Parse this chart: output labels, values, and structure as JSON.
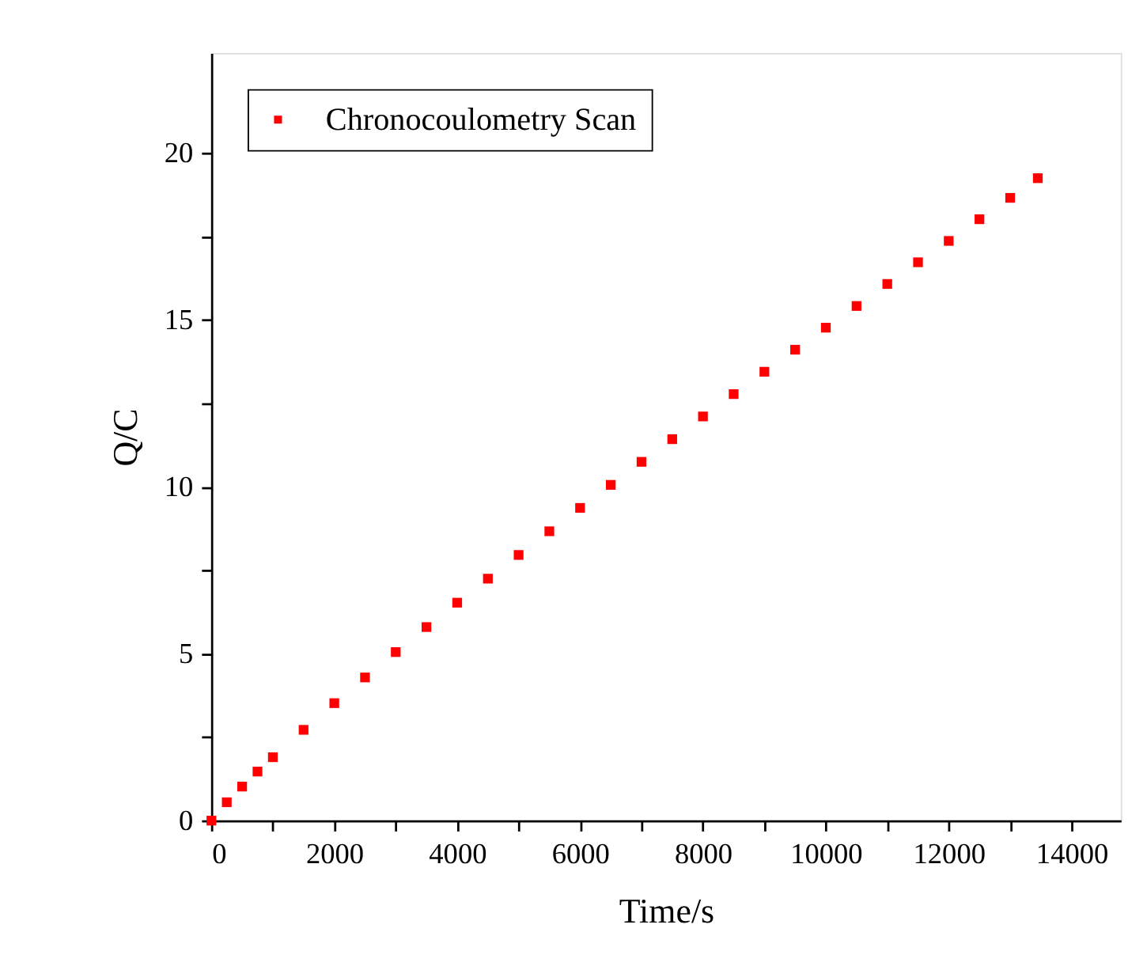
{
  "chart_data": {
    "type": "scatter",
    "xlabel": "Time/s",
    "ylabel": "Q/C",
    "marker": "square",
    "legend": "top left",
    "grid": false,
    "xlim": [
      0,
      14800
    ],
    "ylim": [
      0,
      23
    ],
    "xticks": [
      0,
      {
        "value": 1000,
        "label": null
      },
      2000,
      {
        "value": 3000,
        "label": null
      },
      4000,
      {
        "value": 5000,
        "label": null
      },
      6000,
      {
        "value": 7000,
        "label": null
      },
      8000,
      {
        "value": 9000,
        "label": null
      },
      10000,
      {
        "value": 11000,
        "label": null
      },
      12000,
      {
        "value": 13000,
        "label": null
      },
      14000
    ],
    "yticks": [
      0,
      {
        "value": 2.5,
        "label": null
      },
      5,
      {
        "value": 7.5,
        "label": null
      },
      10,
      {
        "value": 12.5,
        "label": null
      },
      15,
      {
        "value": 17.5,
        "label": null
      },
      20
    ],
    "x": [
      0,
      250,
      500,
      750,
      1000,
      1500,
      2000,
      2500,
      3000,
      3500,
      4000,
      4500,
      5000,
      5500,
      6000,
      6500,
      7000,
      7500,
      8000,
      8500,
      9000,
      9500,
      10000,
      10500,
      11000,
      11500,
      12000,
      12500,
      13000,
      13450
    ],
    "series": [
      {
        "name": "Chronocoulometry Scan",
        "color": "#ff0000",
        "values": [
          0,
          0.55,
          1.02,
          1.47,
          1.9,
          2.72,
          3.52,
          4.29,
          5.05,
          5.8,
          6.53,
          7.25,
          7.96,
          8.67,
          9.37,
          10.06,
          10.75,
          11.43,
          12.11,
          12.78,
          13.45,
          14.11,
          14.77,
          15.42,
          16.08,
          16.73,
          17.37,
          18.02,
          18.66,
          19.25
        ]
      }
    ]
  }
}
